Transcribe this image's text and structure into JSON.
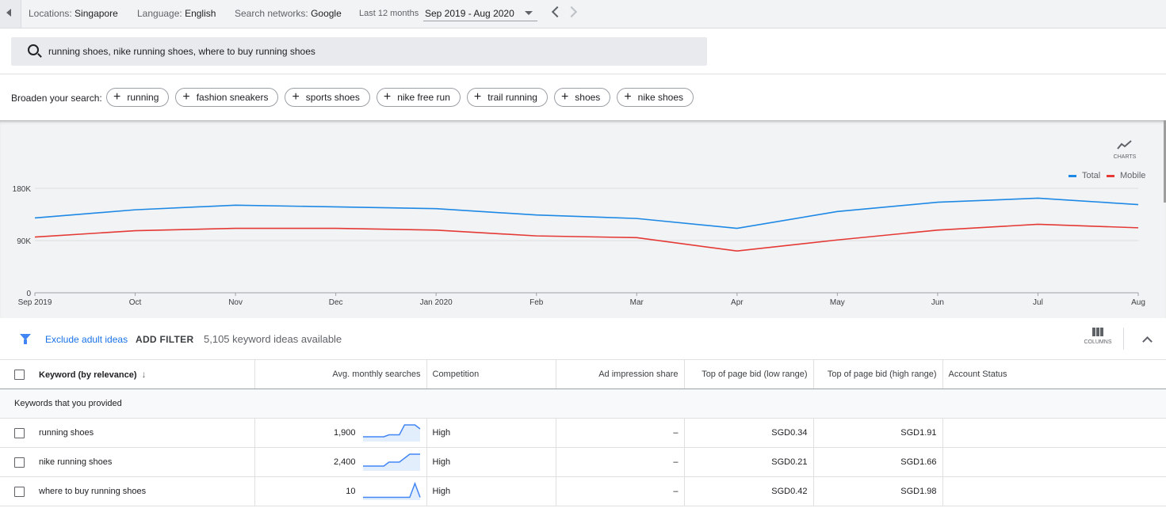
{
  "topbar": {
    "location_label": "Locations:",
    "location_value": "Singapore",
    "language_label": "Language:",
    "language_value": "English",
    "networks_label": "Search networks:",
    "networks_value": "Google",
    "range_label": "Last 12 months",
    "range_value": "Sep 2019 - Aug 2020"
  },
  "search": {
    "query": "running shoes, nike running shoes, where to buy running shoes"
  },
  "broaden": {
    "label": "Broaden your search:",
    "chips": [
      "running",
      "fashion sneakers",
      "sports shoes",
      "nike free run",
      "trail running",
      "shoes",
      "nike shoes"
    ]
  },
  "charts_button": {
    "label": "CHARTS",
    "icon": "trend-line-icon"
  },
  "chart_data": {
    "type": "line",
    "x": [
      "Sep 2019",
      "Oct",
      "Nov",
      "Dec",
      "Jan 2020",
      "Feb",
      "Mar",
      "Apr",
      "May",
      "Jun",
      "Jul",
      "Aug"
    ],
    "series": [
      {
        "name": "Total",
        "color": "#1e88e5",
        "values": [
          129000,
          143000,
          151000,
          148000,
          145000,
          134000,
          128000,
          111000,
          140000,
          156000,
          163000,
          152000
        ]
      },
      {
        "name": "Mobile",
        "color": "#e53935",
        "values": [
          96000,
          107000,
          111000,
          111000,
          108000,
          98000,
          95000,
          72000,
          91000,
          108000,
          118000,
          112000
        ]
      }
    ],
    "yticks": [
      "0",
      "90K",
      "180K"
    ],
    "ylim": [
      0,
      180000
    ],
    "legend_position": "top-right",
    "grid": true
  },
  "filterbar": {
    "exclude_label": "Exclude adult ideas",
    "add_filter_label": "ADD FILTER",
    "available_text": "5,105 keyword ideas available",
    "columns_label": "COLUMNS"
  },
  "table": {
    "headers": {
      "keyword": "Keyword (by relevance)",
      "searches": "Avg. monthly searches",
      "competition": "Competition",
      "impression": "Ad impression share",
      "bid_low": "Top of page bid (low range)",
      "bid_high": "Top of page bid (high range)",
      "status": "Account Status"
    },
    "group_label": "Keywords that you provided",
    "rows": [
      {
        "keyword": "running shoes",
        "searches": "1,900",
        "competition": "High",
        "impression": "–",
        "bid_low": "SGD0.34",
        "bid_high": "SGD1.91",
        "status": "",
        "trend": [
          2,
          2,
          2,
          2,
          2,
          3,
          3,
          3,
          8,
          8,
          8,
          6
        ]
      },
      {
        "keyword": "nike running shoes",
        "searches": "2,400",
        "competition": "High",
        "impression": "–",
        "bid_low": "SGD0.21",
        "bid_high": "SGD1.66",
        "status": "",
        "trend": [
          2,
          2,
          2,
          2,
          2,
          4,
          4,
          4,
          6,
          8,
          8,
          8
        ]
      },
      {
        "keyword": "where to buy running shoes",
        "searches": "10",
        "competition": "High",
        "impression": "–",
        "bid_low": "SGD0.42",
        "bid_high": "SGD1.98",
        "status": "",
        "trend": [
          1,
          1,
          1,
          1,
          1,
          1,
          1,
          1,
          1,
          1,
          8,
          1
        ]
      }
    ]
  }
}
